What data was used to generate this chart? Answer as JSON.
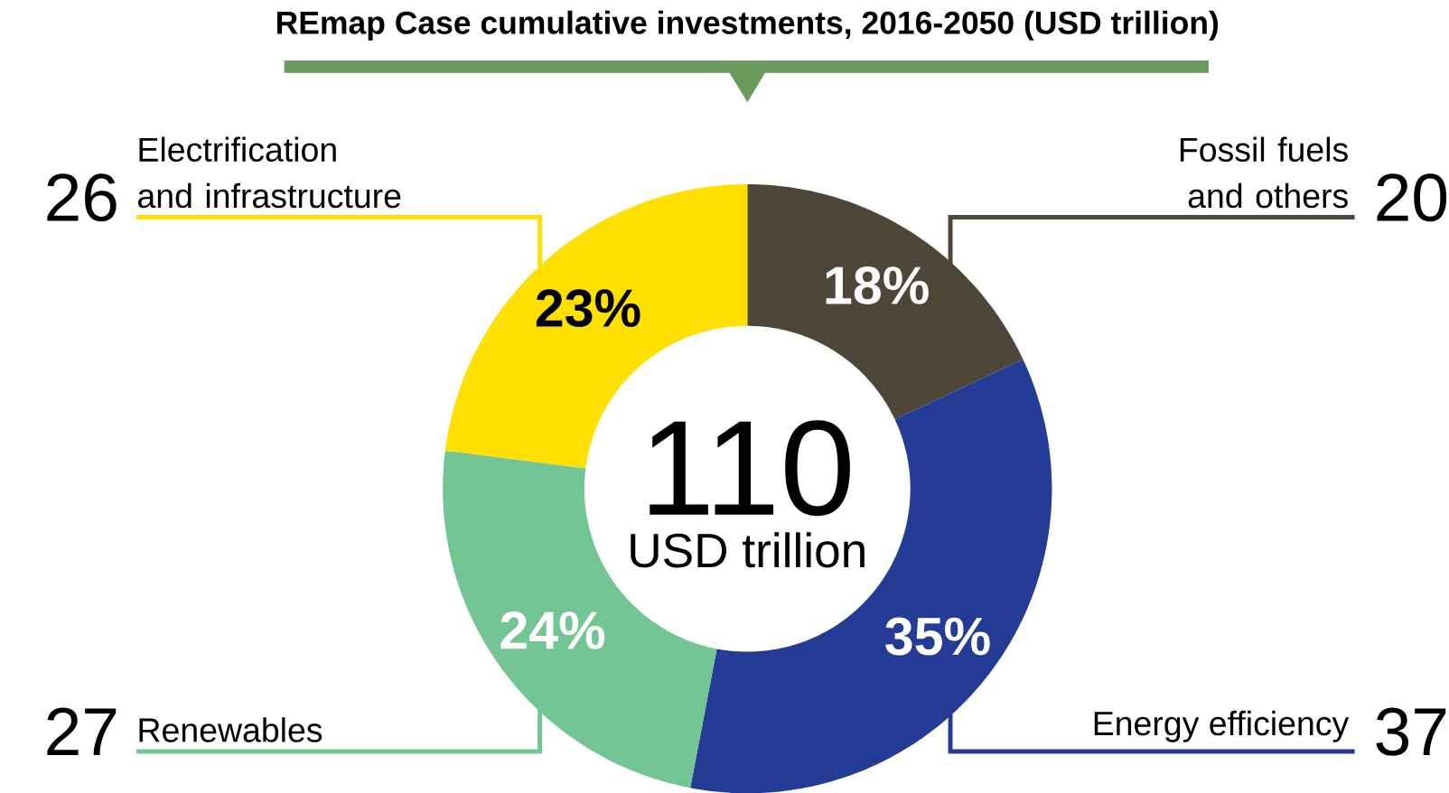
{
  "chart_data": {
    "type": "donut",
    "title": "REmap Case cumulative investments, 2016-2050 (USD trillion)",
    "categories": [
      "Fossil fuels and others",
      "Energy efficiency",
      "Renewables",
      "Electrification and infrastructure"
    ],
    "values": [
      18,
      35,
      24,
      23
    ],
    "colors": [
      "#4d4639",
      "#253c97",
      "#73c693",
      "#ffe000"
    ],
    "value_labels": [
      "18%",
      "35%",
      "24%",
      "23%"
    ],
    "annotations": [
      "110",
      "USD trillion",
      {
        "text": "20",
        "x": "Fossil fuels and others"
      },
      {
        "text": "37",
        "x": "Energy efficiency"
      },
      {
        "text": "27",
        "x": "Renewables"
      },
      {
        "text": "26",
        "x": "Electrification and infrastructure"
      }
    ]
  }
}
